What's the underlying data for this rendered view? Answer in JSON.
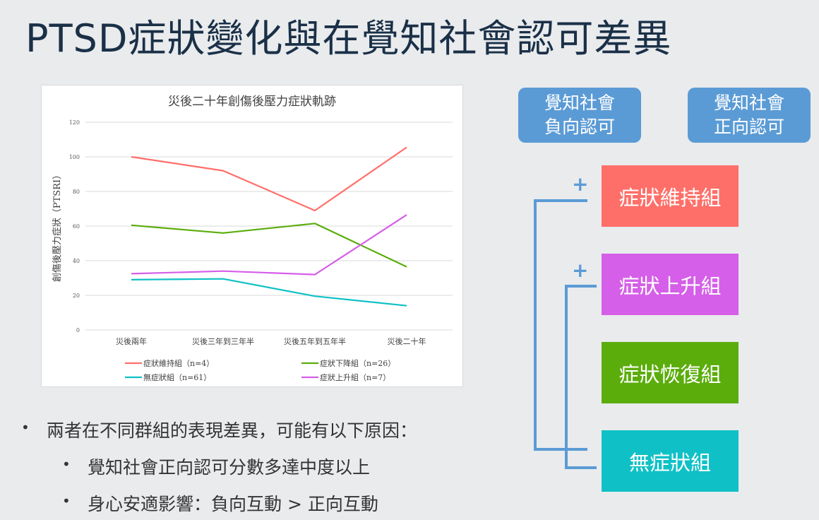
{
  "slide": {
    "title": "PTSD症狀變化與在覺知社會認可差異",
    "bullets": [
      {
        "level": 1,
        "text": "兩者在不同群組的表現差異，可能有以下原因："
      },
      {
        "level": 2,
        "text": "覺知社會正向認可分數多達中度以上"
      },
      {
        "level": 2,
        "text": "身心安適影響：負向互動 > 正向互動"
      }
    ],
    "pills": [
      {
        "line1": "覺知社會",
        "line2": "負向認可"
      },
      {
        "line1": "覺知社會",
        "line2": "正向認可"
      }
    ],
    "groups": [
      {
        "label": "症狀維持組",
        "color": "#FF6F69"
      },
      {
        "label": "症狀上升組",
        "color": "#D55FE8"
      },
      {
        "label": "症狀恢復組",
        "color": "#5BAD0C"
      },
      {
        "label": "無症狀組",
        "color": "#0FC1C6"
      }
    ],
    "plus_sign": "+",
    "connector_color": "#5B9BD5"
  },
  "chart_data": {
    "type": "line",
    "title": "災後二十年創傷後壓力症狀軌跡",
    "ylabel": "創傷後壓力症狀（PTSRI）",
    "xlabel": "",
    "categories": [
      "災後兩年",
      "災後三年到三年半",
      "災後五年到五年半",
      "災後二十年"
    ],
    "ylim": [
      0,
      120
    ],
    "yticks": [
      "0",
      "20",
      "40",
      "60",
      "80",
      "100",
      "120"
    ],
    "grid": true,
    "legend_position": "bottom",
    "series": [
      {
        "name": "症狀維持組（n=4）",
        "color": "#FF6F69",
        "values": [
          100,
          92,
          69,
          105.5
        ]
      },
      {
        "name": "症狀下降組（n=26）",
        "color": "#5BAD0C",
        "values": [
          60.5,
          56,
          61.5,
          36.5
        ]
      },
      {
        "name": "無症狀組（n=61）",
        "color": "#0FC1C6",
        "values": [
          29,
          29.5,
          19.5,
          14
        ]
      },
      {
        "name": "症狀上升組（n=7）",
        "color": "#D55FE8",
        "values": [
          32.5,
          34,
          32,
          66.5
        ]
      }
    ]
  }
}
